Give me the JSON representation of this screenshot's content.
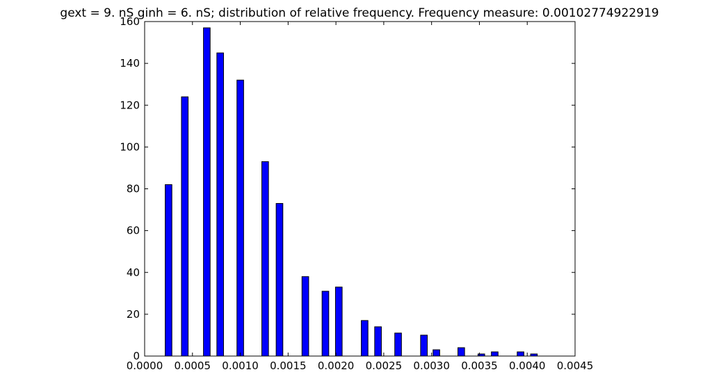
{
  "chart_data": {
    "type": "bar",
    "title": "gext = 9. nS ginh = 6. nS; distribution of relative frequency. Frequency measure: 0.00102774922919",
    "xlabel": "",
    "ylabel": "",
    "xlim": [
      0.0,
      0.0045
    ],
    "ylim": [
      0,
      160
    ],
    "grid": false,
    "legend": null,
    "bar_color": "#0000ff",
    "edge_color": "#000000",
    "x_ticks": [
      "0.0000",
      "0.0005",
      "0.0010",
      "0.0015",
      "0.0020",
      "0.0025",
      "0.0030",
      "0.0035",
      "0.0040",
      "0.0045"
    ],
    "y_ticks": [
      "0",
      "20",
      "40",
      "60",
      "80",
      "100",
      "120",
      "140",
      "160"
    ],
    "bar_width": 7e-05,
    "x": [
      0.00025,
      0.00042,
      0.00065,
      0.00079,
      0.001,
      0.00126,
      0.00141,
      0.00168,
      0.00189,
      0.00203,
      0.0023,
      0.00244,
      0.00265,
      0.00292,
      0.00305,
      0.00331,
      0.00352,
      0.00366,
      0.00393,
      0.00407
    ],
    "values": [
      82,
      124,
      157,
      145,
      132,
      93,
      73,
      38,
      31,
      33,
      17,
      14,
      11,
      10,
      3,
      4,
      1,
      2,
      2,
      1
    ]
  }
}
